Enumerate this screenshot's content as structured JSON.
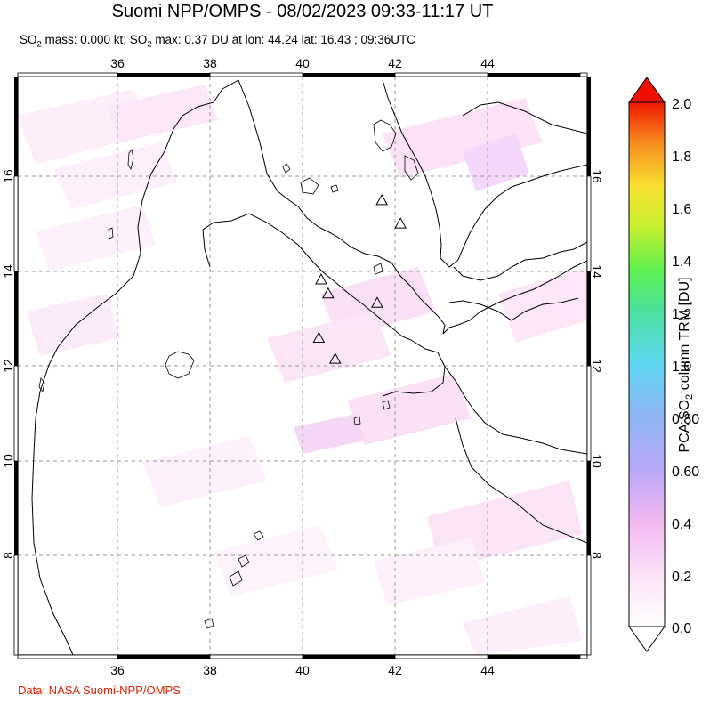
{
  "title": "Suomi NPP/OMPS - 08/02/2023 09:33-11:17 UT",
  "subtitle": {
    "part1": "SO",
    "sub1": "2",
    "part2": " mass: 0.000 kt; SO",
    "sub2": "2",
    "part3": " max: 0.37 DU at lon: 44.24 lat: 16.43 ; 09:36UTC"
  },
  "source": "Data: NASA Suomi-NPP/OMPS",
  "map": {
    "lon_range": [
      34,
      46.2
    ],
    "lat_range": [
      5.8,
      18.2
    ],
    "lon_ticks": [
      "36",
      "38",
      "40",
      "42",
      "44"
    ],
    "lon_tick_values": [
      36,
      38,
      40,
      42,
      44
    ],
    "lat_ticks": [
      "16",
      "14",
      "12",
      "10",
      "8"
    ],
    "lat_tick_values": [
      16,
      14,
      12,
      10,
      8
    ],
    "volcano_markers": [
      {
        "lon": 41.8,
        "lat": 15.55
      },
      {
        "lon": 42.2,
        "lat": 15.05
      },
      {
        "lon": 40.5,
        "lat": 13.85
      },
      {
        "lon": 40.65,
        "lat": 13.55
      },
      {
        "lon": 41.7,
        "lat": 13.35
      },
      {
        "lon": 40.45,
        "lat": 12.6
      },
      {
        "lon": 40.8,
        "lat": 12.15
      }
    ]
  },
  "colorbar": {
    "label_part1": "PCA SO",
    "label_sub": "2",
    "label_part2": " column TRM [DU]",
    "ticks": [
      "2.0",
      "1.8",
      "1.6",
      "1.4",
      "1.2",
      "1.0",
      "0.80",
      "0.60",
      "0.4",
      "0.2",
      "0.0"
    ],
    "range": [
      0.0,
      2.0
    ],
    "colors": [
      "#ffffff",
      "#f7c8f0",
      "#c8a8f8",
      "#8ab0f8",
      "#60d8f0",
      "#50e0a0",
      "#60f060",
      "#c8f030",
      "#f8e030",
      "#f8a020",
      "#f85010",
      "#f01000"
    ]
  }
}
